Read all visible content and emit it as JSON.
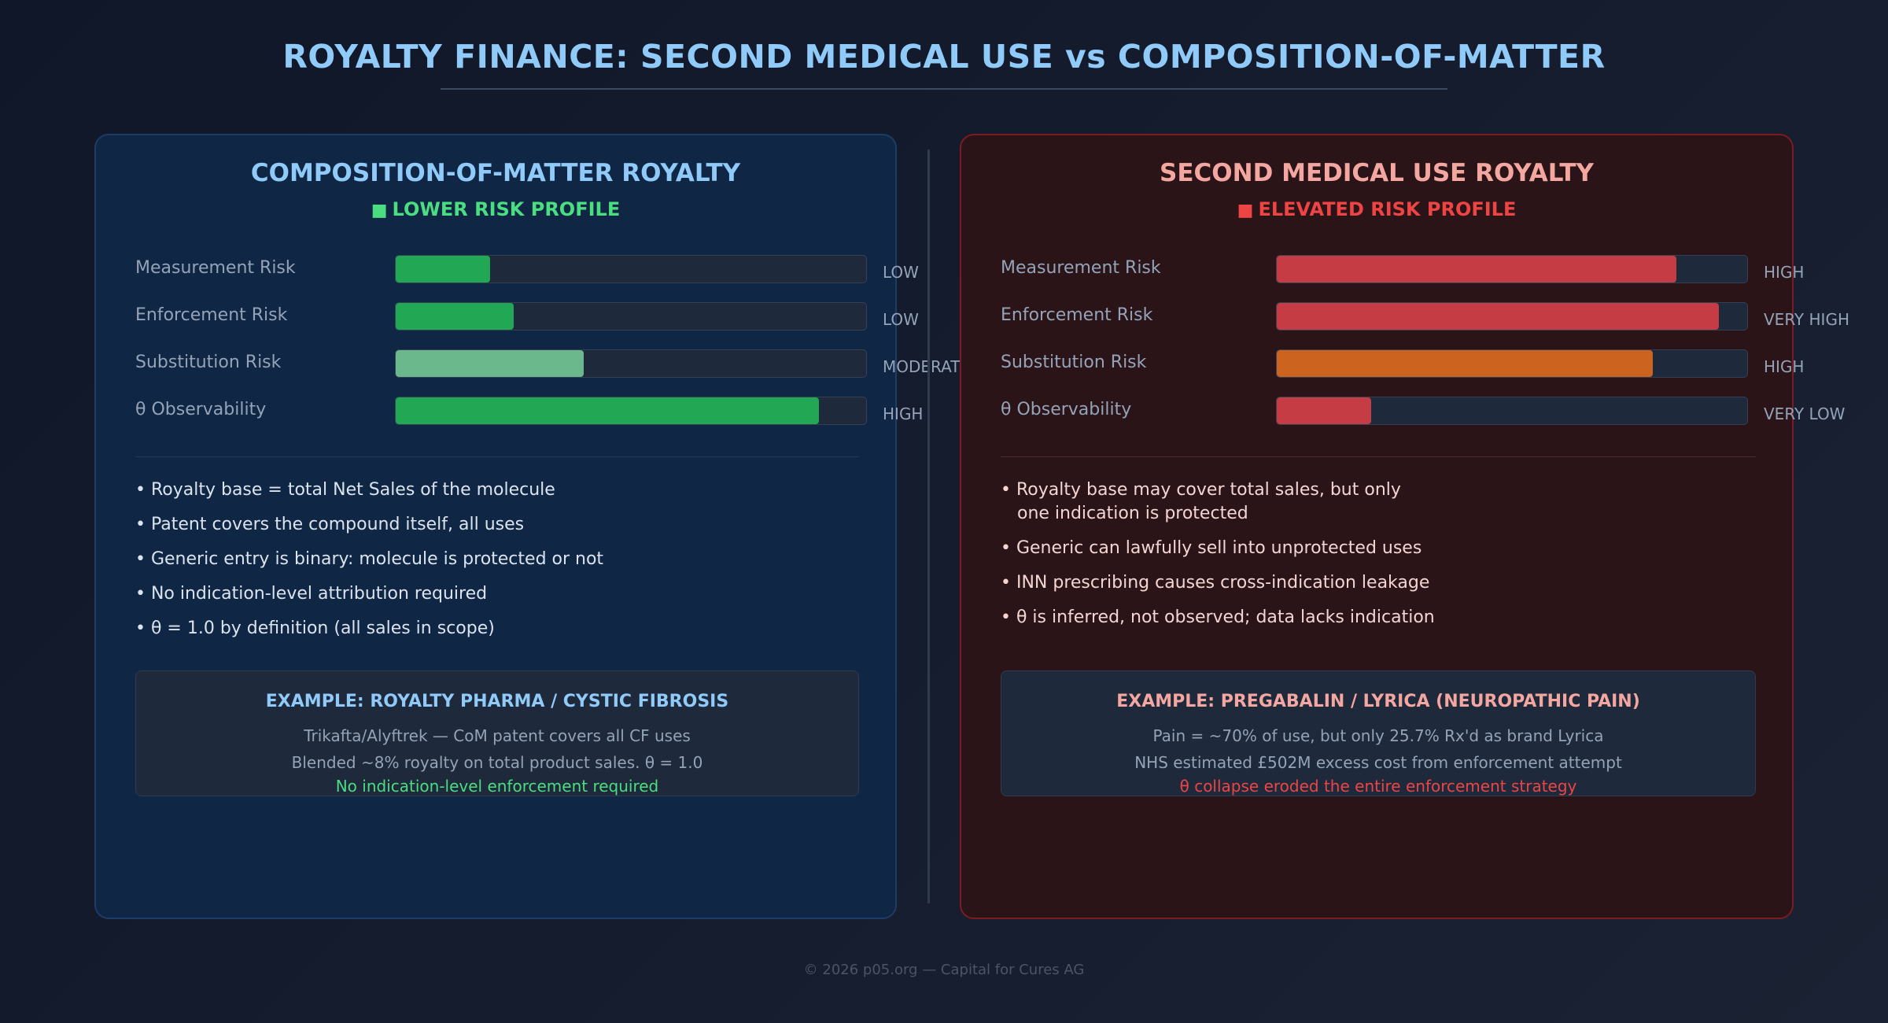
{
  "title": "ROYALTY FINANCE: SECOND MEDICAL USE vs COMPOSITION-OF-MATTER",
  "left_panel": {
    "title": "COMPOSITION-OF-MATTER ROYALTY",
    "profile": "LOWER RISK PROFILE",
    "risks": [
      {
        "label": "Measurement Risk",
        "level": "LOW",
        "fill": 0.2,
        "color": "#22a855"
      },
      {
        "label": "Enforcement Risk",
        "level": "LOW",
        "fill": 0.25,
        "color": "#22a855"
      },
      {
        "label": "Substitution Risk",
        "level": "MODERATE",
        "fill": 0.4,
        "color": "#6bb88c"
      },
      {
        "label": "θ Observability",
        "level": "HIGH",
        "fill": 0.9,
        "color": "#22a855"
      }
    ],
    "bullets": [
      "• Royalty base = total Net Sales of the molecule",
      "• Patent covers the compound itself, all uses",
      "• Generic entry is binary: molecule is protected or not",
      "• No indication-level attribution required",
      "• θ = 1.0 by definition (all sales in scope)"
    ],
    "example": {
      "title": "EXAMPLE: ROYALTY PHARMA / CYSTIC FIBROSIS",
      "line1": "Trikafta/Alyftrek — CoM patent covers all CF uses",
      "line2": "Blended ~8% royalty on total product sales. θ = 1.0",
      "line3": "No indication-level enforcement required"
    }
  },
  "right_panel": {
    "title": "SECOND MEDICAL USE ROYALTY",
    "profile": "ELEVATED RISK PROFILE",
    "risks": [
      {
        "label": "Measurement Risk",
        "level": "HIGH",
        "fill": 0.85,
        "color": "#c53c44"
      },
      {
        "label": "Enforcement Risk",
        "level": "VERY HIGH",
        "fill": 0.94,
        "color": "#c53c44"
      },
      {
        "label": "Substitution Risk",
        "level": "HIGH",
        "fill": 0.8,
        "color": "#cc6420"
      },
      {
        "label": "θ Observability",
        "level": "VERY LOW",
        "fill": 0.2,
        "color": "#c53c44"
      }
    ],
    "bullets": [
      "• Royalty base may cover total sales, but only\n   one indication is protected",
      "• Generic can lawfully sell into unprotected uses",
      "• INN prescribing causes cross-indication leakage",
      "• θ is inferred, not observed; data lacks indication"
    ],
    "example": {
      "title": "EXAMPLE: PREGABALIN / LYRICA (NEUROPATHIC PAIN)",
      "line1": "Pain = ~70% of use, but only 25.7% Rx'd as brand Lyrica",
      "line2": "NHS estimated £502M excess cost from enforcement attempt",
      "line3": "θ collapse eroded the entire enforcement strategy"
    }
  },
  "footer": "© 2026 p05.org — Capital for Cures AG"
}
